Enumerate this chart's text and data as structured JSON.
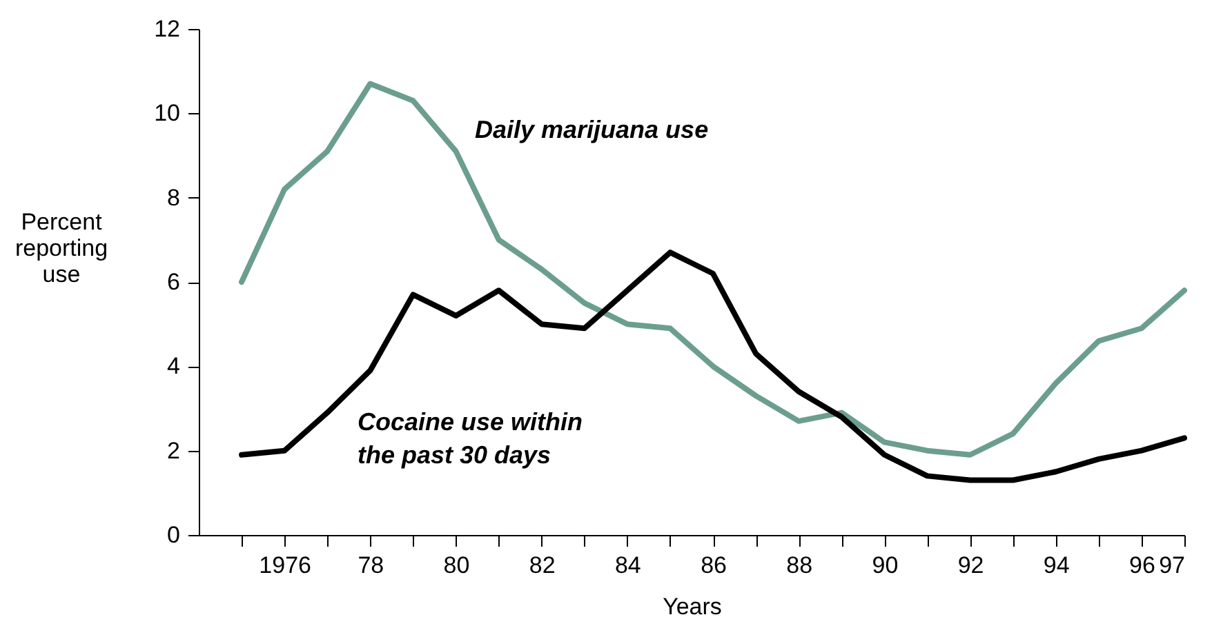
{
  "chart_data": {
    "type": "line",
    "xlabel": "Years",
    "ylabel": "Percent\nreporting\nuse",
    "x": [
      1975,
      1976,
      1977,
      1978,
      1979,
      1980,
      1981,
      1982,
      1983,
      1984,
      1985,
      1986,
      1987,
      1988,
      1989,
      1990,
      1991,
      1992,
      1993,
      1994,
      1995,
      1996,
      1997
    ],
    "series": [
      {
        "color": "#6b9e8f",
        "values": [
          6.0,
          8.2,
          9.1,
          10.7,
          10.3,
          9.1,
          7.0,
          6.3,
          5.5,
          5.0,
          4.9,
          4.0,
          3.3,
          2.7,
          2.9,
          2.2,
          2.0,
          1.9,
          2.4,
          3.6,
          4.6,
          4.9,
          5.8
        ]
      },
      {
        "color": "#000000",
        "values": [
          1.9,
          2.0,
          2.9,
          3.9,
          5.7,
          5.2,
          5.8,
          5.0,
          4.9,
          5.8,
          6.7,
          6.2,
          4.3,
          3.4,
          2.8,
          1.9,
          1.4,
          1.3,
          1.3,
          1.5,
          1.8,
          2.0,
          2.3
        ]
      }
    ],
    "annotations": [
      "Daily marijuana use",
      "Cocaine use within\nthe past 30 days"
    ],
    "xlim": [
      1974,
      1997
    ],
    "xticks": [
      {
        "value": 1975,
        "label": null
      },
      1976,
      {
        "value": 1977,
        "label": null
      },
      {
        "value": 1978,
        "label": "78"
      },
      {
        "value": 1979,
        "label": null
      },
      {
        "value": 1980,
        "label": "80"
      },
      {
        "value": 1981,
        "label": null
      },
      {
        "value": 1982,
        "label": "82"
      },
      {
        "value": 1983,
        "label": null
      },
      {
        "value": 1984,
        "label": "84"
      },
      {
        "value": 1985,
        "label": null
      },
      {
        "value": 1986,
        "label": "86"
      },
      {
        "value": 1987,
        "label": null
      },
      {
        "value": 1988,
        "label": "88"
      },
      {
        "value": 1989,
        "label": null
      },
      {
        "value": 1990,
        "label": "90"
      },
      {
        "value": 1991,
        "label": null
      },
      {
        "value": 1992,
        "label": "92"
      },
      {
        "value": 1993,
        "label": null
      },
      {
        "value": 1994,
        "label": "94"
      },
      {
        "value": 1995,
        "label": null
      },
      {
        "value": 1996,
        "label": "96"
      },
      {
        "value": 1997,
        "label": "97"
      }
    ],
    "ylim": [
      0,
      12
    ],
    "yticks": [
      0,
      2,
      4,
      6,
      8,
      10,
      12
    ],
    "grid": false,
    "legend": false,
    "marker": "none",
    "line_style": "solid"
  }
}
